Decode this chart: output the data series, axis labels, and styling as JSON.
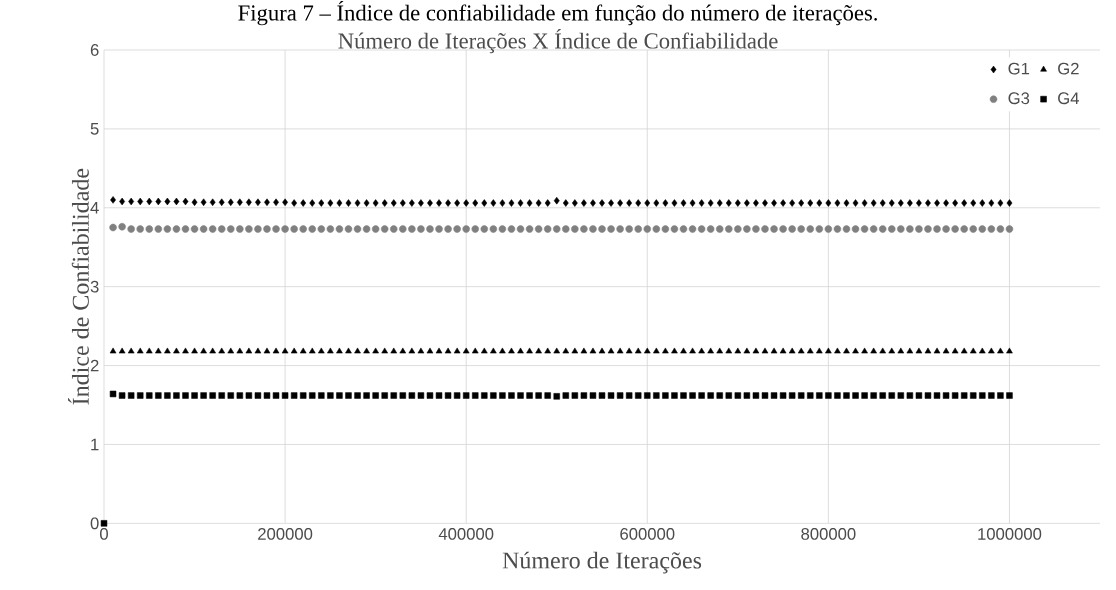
{
  "chart_data": {
    "type": "scatter",
    "title": "Figura 7 – Índice de confiabilidade em função do número de iterações.",
    "subtitle": "Número de Iterações X Índice de Confiabilidade",
    "xlabel": "Número de Iterações",
    "ylabel": "Índice de Confiabilidade",
    "x": [
      0,
      10000,
      20000,
      30000,
      40000,
      50000,
      60000,
      70000,
      80000,
      90000,
      100000,
      110000,
      120000,
      130000,
      140000,
      150000,
      160000,
      170000,
      180000,
      190000,
      200000,
      210000,
      220000,
      230000,
      240000,
      250000,
      260000,
      270000,
      280000,
      290000,
      300000,
      310000,
      320000,
      330000,
      340000,
      350000,
      360000,
      370000,
      380000,
      390000,
      400000,
      410000,
      420000,
      430000,
      440000,
      450000,
      460000,
      470000,
      480000,
      490000,
      500000,
      510000,
      520000,
      530000,
      540000,
      550000,
      560000,
      570000,
      580000,
      590000,
      600000,
      610000,
      620000,
      630000,
      640000,
      650000,
      660000,
      670000,
      680000,
      690000,
      700000,
      710000,
      720000,
      730000,
      740000,
      750000,
      760000,
      770000,
      780000,
      790000,
      800000,
      810000,
      820000,
      830000,
      840000,
      850000,
      860000,
      870000,
      880000,
      890000,
      900000,
      910000,
      920000,
      930000,
      940000,
      950000,
      960000,
      970000,
      980000,
      990000,
      1000000
    ],
    "series": [
      {
        "name": "G1",
        "color": "#000000",
        "marker": "diamond",
        "values": [
          null,
          4.1,
          4.08,
          4.08,
          4.08,
          4.08,
          4.08,
          4.08,
          4.08,
          4.08,
          4.07,
          4.07,
          4.07,
          4.07,
          4.07,
          4.07,
          4.07,
          4.07,
          4.07,
          4.07,
          4.07,
          4.06,
          4.06,
          4.06,
          4.06,
          4.06,
          4.06,
          4.06,
          4.06,
          4.06,
          4.06,
          4.06,
          4.06,
          4.06,
          4.06,
          4.06,
          4.06,
          4.06,
          4.06,
          4.06,
          4.06,
          4.06,
          4.06,
          4.06,
          4.06,
          4.06,
          4.06,
          4.06,
          4.06,
          4.06,
          4.09,
          4.06,
          4.06,
          4.06,
          4.06,
          4.06,
          4.06,
          4.06,
          4.06,
          4.06,
          4.06,
          4.06,
          4.06,
          4.06,
          4.06,
          4.06,
          4.06,
          4.06,
          4.06,
          4.06,
          4.06,
          4.06,
          4.06,
          4.06,
          4.06,
          4.06,
          4.06,
          4.06,
          4.06,
          4.06,
          4.06,
          4.06,
          4.06,
          4.06,
          4.06,
          4.06,
          4.06,
          4.06,
          4.06,
          4.06,
          4.06,
          4.06,
          4.06,
          4.06,
          4.06,
          4.06,
          4.06,
          4.06,
          4.06,
          4.06,
          4.06
        ]
      },
      {
        "name": "G2",
        "color": "#000000",
        "marker": "triangle",
        "values": [
          null,
          2.18,
          2.18,
          2.18,
          2.18,
          2.18,
          2.18,
          2.18,
          2.18,
          2.18,
          2.18,
          2.18,
          2.18,
          2.18,
          2.18,
          2.18,
          2.18,
          2.18,
          2.18,
          2.18,
          2.18,
          2.18,
          2.18,
          2.18,
          2.18,
          2.18,
          2.18,
          2.18,
          2.18,
          2.18,
          2.18,
          2.18,
          2.18,
          2.18,
          2.18,
          2.18,
          2.18,
          2.18,
          2.18,
          2.18,
          2.18,
          2.18,
          2.18,
          2.18,
          2.18,
          2.18,
          2.18,
          2.18,
          2.18,
          2.18,
          2.18,
          2.18,
          2.18,
          2.18,
          2.18,
          2.18,
          2.18,
          2.18,
          2.18,
          2.18,
          2.18,
          2.18,
          2.18,
          2.18,
          2.18,
          2.18,
          2.18,
          2.18,
          2.18,
          2.18,
          2.18,
          2.18,
          2.18,
          2.18,
          2.18,
          2.18,
          2.18,
          2.18,
          2.18,
          2.18,
          2.18,
          2.18,
          2.18,
          2.18,
          2.18,
          2.18,
          2.18,
          2.18,
          2.18,
          2.18,
          2.18,
          2.18,
          2.18,
          2.18,
          2.18,
          2.18,
          2.18,
          2.18,
          2.18,
          2.18,
          2.18
        ]
      },
      {
        "name": "G3",
        "color": "#808080",
        "marker": "circle",
        "values": [
          null,
          3.75,
          3.76,
          3.73,
          3.73,
          3.73,
          3.73,
          3.73,
          3.73,
          3.73,
          3.73,
          3.73,
          3.73,
          3.73,
          3.73,
          3.73,
          3.73,
          3.73,
          3.73,
          3.73,
          3.73,
          3.73,
          3.73,
          3.73,
          3.73,
          3.73,
          3.73,
          3.73,
          3.73,
          3.73,
          3.73,
          3.73,
          3.73,
          3.73,
          3.73,
          3.73,
          3.73,
          3.73,
          3.73,
          3.73,
          3.73,
          3.73,
          3.73,
          3.73,
          3.73,
          3.73,
          3.73,
          3.73,
          3.73,
          3.73,
          3.73,
          3.73,
          3.73,
          3.73,
          3.73,
          3.73,
          3.73,
          3.73,
          3.73,
          3.73,
          3.73,
          3.73,
          3.73,
          3.73,
          3.73,
          3.73,
          3.73,
          3.73,
          3.73,
          3.73,
          3.73,
          3.73,
          3.73,
          3.73,
          3.73,
          3.73,
          3.73,
          3.73,
          3.73,
          3.73,
          3.73,
          3.73,
          3.73,
          3.73,
          3.73,
          3.73,
          3.73,
          3.73,
          3.73,
          3.73,
          3.73,
          3.73,
          3.73,
          3.73,
          3.73,
          3.73,
          3.73,
          3.73,
          3.73,
          3.73,
          3.73
        ]
      },
      {
        "name": "G4",
        "color": "#000000",
        "marker": "square",
        "values": [
          0,
          1.64,
          1.62,
          1.62,
          1.62,
          1.62,
          1.62,
          1.62,
          1.62,
          1.62,
          1.62,
          1.62,
          1.62,
          1.62,
          1.62,
          1.62,
          1.62,
          1.62,
          1.62,
          1.62,
          1.62,
          1.62,
          1.62,
          1.62,
          1.62,
          1.62,
          1.62,
          1.62,
          1.62,
          1.62,
          1.62,
          1.62,
          1.62,
          1.62,
          1.62,
          1.62,
          1.62,
          1.62,
          1.62,
          1.62,
          1.62,
          1.62,
          1.62,
          1.62,
          1.62,
          1.62,
          1.62,
          1.62,
          1.62,
          1.62,
          1.61,
          1.62,
          1.62,
          1.62,
          1.62,
          1.62,
          1.62,
          1.62,
          1.62,
          1.62,
          1.62,
          1.62,
          1.62,
          1.62,
          1.62,
          1.62,
          1.62,
          1.62,
          1.62,
          1.62,
          1.62,
          1.62,
          1.62,
          1.62,
          1.62,
          1.62,
          1.62,
          1.62,
          1.62,
          1.62,
          1.62,
          1.62,
          1.62,
          1.62,
          1.62,
          1.62,
          1.62,
          1.62,
          1.62,
          1.62,
          1.62,
          1.62,
          1.62,
          1.62,
          1.62,
          1.62,
          1.62,
          1.62,
          1.62,
          1.62,
          1.62
        ]
      }
    ],
    "xlim": [
      0,
      1100000
    ],
    "ylim": [
      0,
      6
    ],
    "xticks": [
      0,
      200000,
      400000,
      600000,
      800000,
      1000000
    ],
    "yticks": [
      0,
      1,
      2,
      3,
      4,
      5,
      6
    ],
    "grid": true,
    "legend": "top right"
  }
}
